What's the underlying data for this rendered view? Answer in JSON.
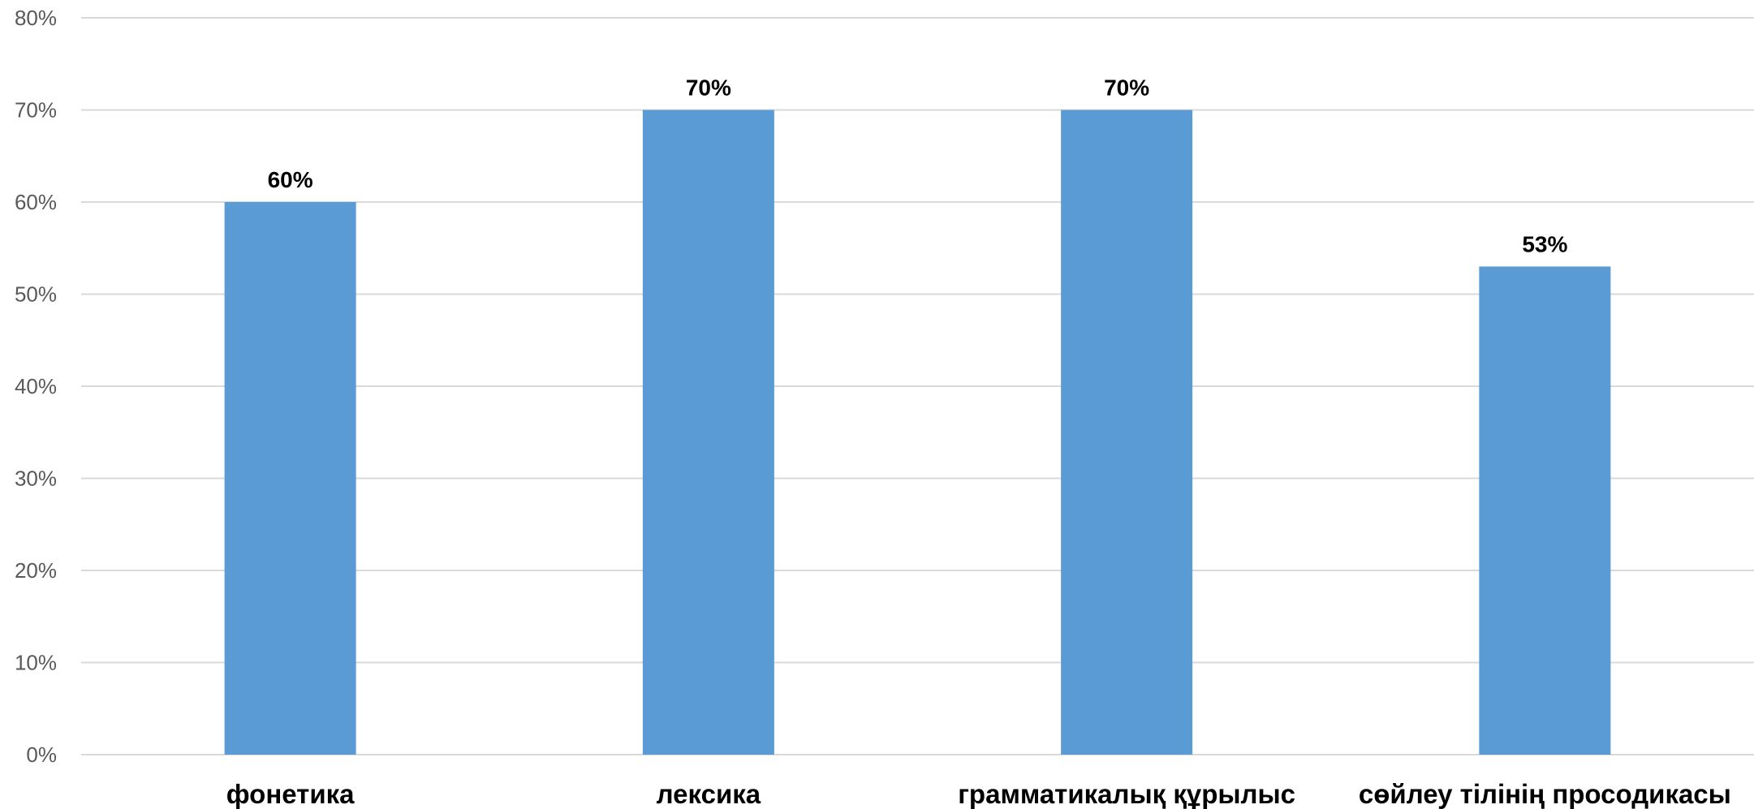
{
  "chart_data": {
    "type": "bar",
    "categories": [
      "фонетика",
      "лексика",
      "грамматикалық құрылыс",
      "сөйлеу тілінің просодикасы"
    ],
    "values": [
      60,
      70,
      70,
      53
    ],
    "data_labels": [
      "60%",
      "70%",
      "70%",
      "53%"
    ],
    "ylim": [
      0,
      80
    ],
    "y_ticks": [
      0,
      10,
      20,
      30,
      40,
      50,
      60,
      70,
      80
    ],
    "y_tick_labels": [
      "0%",
      "10%",
      "20%",
      "30%",
      "40%",
      "50%",
      "60%",
      "70%",
      "80%"
    ],
    "grid": true,
    "legend": "none",
    "colors": {
      "bar": "#5B9BD5",
      "grid": "#D9D9D9"
    }
  }
}
